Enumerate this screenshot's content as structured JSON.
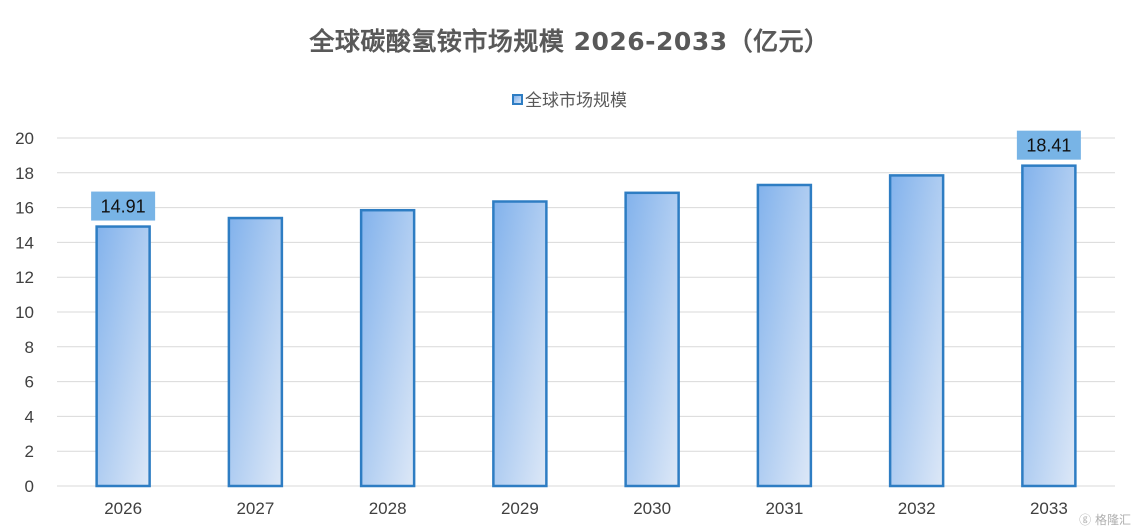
{
  "chart_data": {
    "type": "bar",
    "title": "全球碳酸氢铵市场规模 2026-2033（亿元）",
    "categories": [
      "2026",
      "2027",
      "2028",
      "2029",
      "2030",
      "2031",
      "2032",
      "2033"
    ],
    "series": [
      {
        "name": "全球市场规模",
        "values": [
          14.91,
          15.4,
          15.85,
          16.35,
          16.85,
          17.3,
          17.85,
          18.41
        ]
      }
    ],
    "data_labels": [
      {
        "category": "2026",
        "text": "14.91"
      },
      {
        "category": "2033",
        "text": "18.41"
      }
    ],
    "yticks": [
      "0",
      "2",
      "4",
      "6",
      "8",
      "10",
      "12",
      "14",
      "16",
      "18",
      "20"
    ],
    "ylim": [
      0,
      20
    ],
    "grid": "horizontal",
    "legend_position": "top",
    "colors": {
      "bar_border": "#2e7dc3",
      "bar_fill_top": "#82b2ec",
      "bar_fill_bottom": "#dde8f7",
      "label_bg": "#78b4e6",
      "grid": "#d9d9d9",
      "axis_text": "#404040",
      "title_text": "#595959"
    }
  },
  "watermark": {
    "text": "格隆汇",
    "icon": "ghlogo-icon"
  }
}
